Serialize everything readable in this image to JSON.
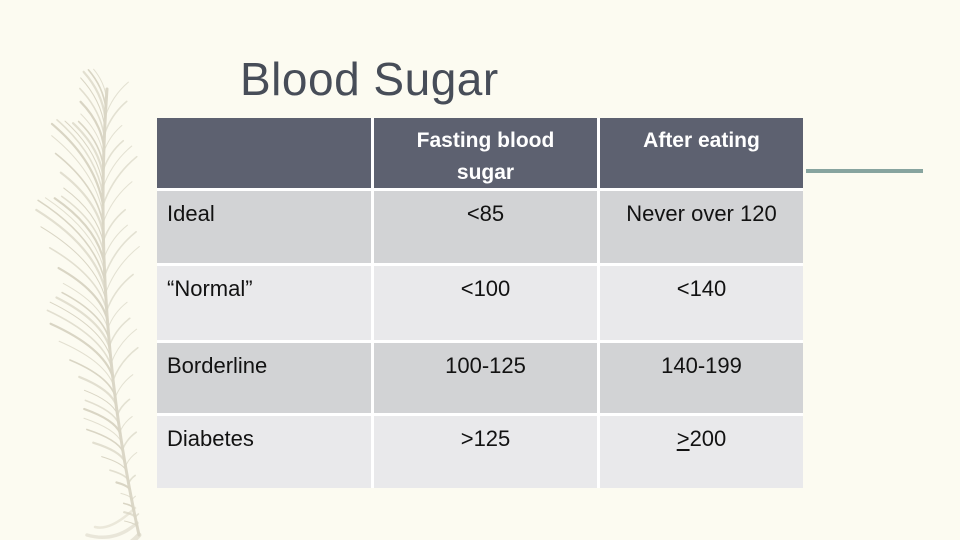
{
  "slide": {
    "title": "Blood Sugar",
    "background_color": "#fcfbf1",
    "title_color": "#474d58",
    "accent_line_color": "#87a49f"
  },
  "icons": {
    "feather": {
      "name": "feather-icon",
      "color": "#d9d5c4"
    }
  },
  "table": {
    "header": {
      "row_label_column": "",
      "columns": [
        "Fasting blood sugar",
        "After eating"
      ],
      "background": "#5d6170",
      "text_color": "#ffffff"
    },
    "row_colors": {
      "odd": "#d2d3d5",
      "even": "#e9e9eb"
    },
    "rows": [
      {
        "label": "Ideal",
        "fasting": "<85",
        "after": "Never over 120"
      },
      {
        "label": "“Normal”",
        "fasting": "<100",
        "after": "<140"
      },
      {
        "label": "Borderline",
        "fasting": "100-125",
        "after": "140-199"
      },
      {
        "label": "Diabetes",
        "fasting": ">125",
        "after": {
          "prefix": ">",
          "suffix": "200"
        }
      }
    ]
  }
}
